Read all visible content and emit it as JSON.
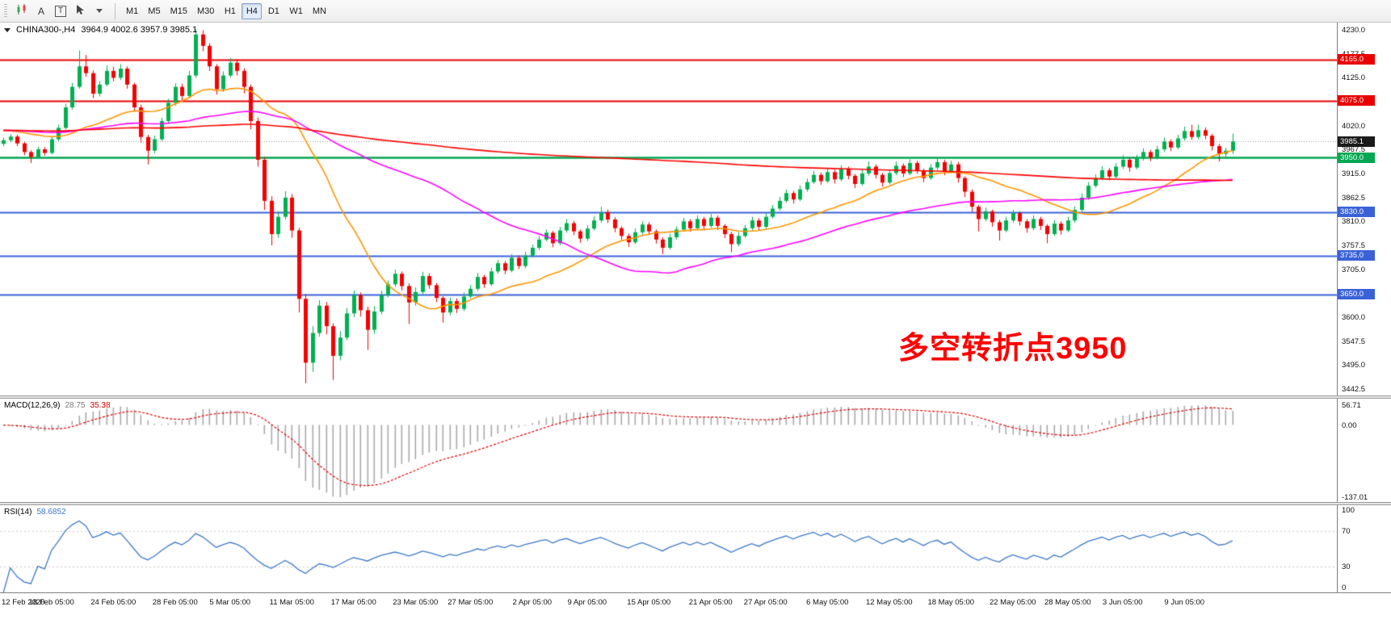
{
  "toolbar": {
    "tools": {
      "a_label": "A",
      "t_label": "T"
    },
    "timeframes": [
      "M1",
      "M5",
      "M15",
      "M30",
      "H1",
      "H4",
      "D1",
      "W1",
      "MN"
    ],
    "active_timeframe": "H4"
  },
  "chart": {
    "title_symbol": "CHINA300-,H4",
    "title_ohlc": "3964.9 4002.6 3957.9 3985.1",
    "annotation": "多空转折点3950",
    "annotation_color": "#FF0000"
  },
  "chart_data": {
    "type": "candlestick",
    "symbol": "CHINA300-",
    "timeframe": "H4",
    "ohlc_current": {
      "open": 3964.9,
      "high": 4002.6,
      "low": 3957.9,
      "close": 3985.1
    },
    "ylim": [
      3428,
      4246
    ],
    "price_ticks": [
      4230.0,
      4177.5,
      4125.0,
      4072.5,
      4020.0,
      3967.5,
      3915.0,
      3862.5,
      3810.0,
      3757.5,
      3705.0,
      3652.5,
      3600.0,
      3547.5,
      3495.0,
      3442.5
    ],
    "hlines": [
      {
        "price": 4165.0,
        "label": "4165.0",
        "color": "#E80000",
        "width": 2
      },
      {
        "price": 4075.0,
        "label": "4075.0",
        "color": "#E80000",
        "width": 2
      },
      {
        "price": 3950.0,
        "label": "3950.0",
        "color": "#00A651",
        "width": 2.4
      },
      {
        "price": 3830.0,
        "label": "3830.0",
        "color": "#3A62D8",
        "width": 2
      },
      {
        "price": 3735.0,
        "label": "3735.0",
        "color": "#3A62D8",
        "width": 2
      },
      {
        "price": 3650.0,
        "label": "3650.0",
        "color": "#3A62D8",
        "width": 2
      }
    ],
    "current_price": {
      "value": 3985.1,
      "label": "3985.1",
      "badge_color": "#1A1A1A",
      "line_color": "#999999"
    },
    "moving_averages": [
      {
        "name": "ma-fast",
        "color": "#FF9500",
        "period": 20
      },
      {
        "name": "ma-mid",
        "color": "#FF00FF",
        "period": 55
      },
      {
        "name": "ma-slow",
        "color": "#FF0000",
        "period": 240
      }
    ],
    "colors": {
      "bull": "#00B050",
      "bear": "#F40000",
      "background": "#FFFFFF"
    },
    "candles": [
      [
        3980,
        3994,
        3975,
        3988
      ],
      [
        3988,
        4001,
        3984,
        3996
      ],
      [
        3996,
        4000,
        3975,
        3981
      ],
      [
        3981,
        3984,
        3955,
        3962
      ],
      [
        3962,
        3966,
        3938,
        3951
      ],
      [
        3951,
        3974,
        3947,
        3968
      ],
      [
        3968,
        3973,
        3954,
        3960
      ],
      [
        3960,
        3996,
        3957,
        3990
      ],
      [
        3990,
        4022,
        3986,
        4015
      ],
      [
        4015,
        4068,
        4012,
        4060
      ],
      [
        4060,
        4114,
        4055,
        4105
      ],
      [
        4105,
        4185,
        4101,
        4150
      ],
      [
        4150,
        4175,
        4127,
        4135
      ],
      [
        4135,
        4141,
        4080,
        4090
      ],
      [
        4090,
        4118,
        4084,
        4110
      ],
      [
        4110,
        4152,
        4106,
        4140
      ],
      [
        4140,
        4149,
        4117,
        4125
      ],
      [
        4125,
        4155,
        4120,
        4145
      ],
      [
        4145,
        4150,
        4101,
        4110
      ],
      [
        4110,
        4114,
        4050,
        4060
      ],
      [
        4060,
        4066,
        3983,
        3995
      ],
      [
        3995,
        4000,
        3935,
        3965
      ],
      [
        3965,
        3998,
        3959,
        3990
      ],
      [
        3990,
        4037,
        3986,
        4030
      ],
      [
        4030,
        4079,
        4025,
        4070
      ],
      [
        4070,
        4113,
        4064,
        4105
      ],
      [
        4105,
        4112,
        4076,
        4085
      ],
      [
        4085,
        4140,
        4081,
        4130
      ],
      [
        4130,
        4231,
        4125,
        4220
      ],
      [
        4220,
        4229,
        4183,
        4195
      ],
      [
        4195,
        4201,
        4140,
        4150
      ],
      [
        4150,
        4155,
        4088,
        4100
      ],
      [
        4100,
        4139,
        4094,
        4130
      ],
      [
        4130,
        4168,
        4125,
        4158
      ],
      [
        4158,
        4166,
        4130,
        4140
      ],
      [
        4140,
        4146,
        4091,
        4105
      ],
      [
        4105,
        4110,
        4012,
        4030
      ],
      [
        4030,
        4038,
        3930,
        3945
      ],
      [
        3945,
        3951,
        3835,
        3855
      ],
      [
        3855,
        3865,
        3757,
        3782
      ],
      [
        3782,
        3832,
        3774,
        3820
      ],
      [
        3820,
        3876,
        3814,
        3862
      ],
      [
        3862,
        3870,
        3774,
        3790
      ],
      [
        3790,
        3796,
        3610,
        3640
      ],
      [
        3640,
        3650,
        3455,
        3500
      ],
      [
        3500,
        3580,
        3480,
        3565
      ],
      [
        3565,
        3637,
        3557,
        3625
      ],
      [
        3625,
        3633,
        3562,
        3580
      ],
      [
        3580,
        3586,
        3462,
        3515
      ],
      [
        3515,
        3569,
        3505,
        3555
      ],
      [
        3555,
        3620,
        3549,
        3608
      ],
      [
        3608,
        3658,
        3600,
        3648
      ],
      [
        3648,
        3654,
        3601,
        3615
      ],
      [
        3615,
        3623,
        3528,
        3572
      ],
      [
        3572,
        3624,
        3563,
        3612
      ],
      [
        3612,
        3658,
        3606,
        3648
      ],
      [
        3648,
        3680,
        3643,
        3672
      ],
      [
        3672,
        3704,
        3666,
        3695
      ],
      [
        3695,
        3700,
        3658,
        3668
      ],
      [
        3668,
        3674,
        3585,
        3632
      ],
      [
        3632,
        3665,
        3625,
        3655
      ],
      [
        3655,
        3699,
        3650,
        3690
      ],
      [
        3690,
        3696,
        3662,
        3670
      ],
      [
        3670,
        3675,
        3633,
        3642
      ],
      [
        3642,
        3646,
        3588,
        3610
      ],
      [
        3610,
        3643,
        3604,
        3635
      ],
      [
        3635,
        3641,
        3609,
        3618
      ],
      [
        3618,
        3654,
        3613,
        3645
      ],
      [
        3645,
        3670,
        3641,
        3662
      ],
      [
        3662,
        3697,
        3657,
        3688
      ],
      [
        3688,
        3693,
        3664,
        3672
      ],
      [
        3672,
        3708,
        3668,
        3700
      ],
      [
        3700,
        3725,
        3695,
        3718
      ],
      [
        3718,
        3723,
        3694,
        3702
      ],
      [
        3702,
        3738,
        3698,
        3730
      ],
      [
        3730,
        3735,
        3705,
        3712
      ],
      [
        3712,
        3743,
        3707,
        3735
      ],
      [
        3735,
        3759,
        3731,
        3752
      ],
      [
        3752,
        3778,
        3747,
        3770
      ],
      [
        3770,
        3792,
        3766,
        3785
      ],
      [
        3785,
        3789,
        3753,
        3762
      ],
      [
        3762,
        3798,
        3758,
        3790
      ],
      [
        3790,
        3815,
        3785,
        3806
      ],
      [
        3806,
        3811,
        3780,
        3788
      ],
      [
        3788,
        3792,
        3763,
        3772
      ],
      [
        3772,
        3802,
        3767,
        3794
      ],
      [
        3794,
        3821,
        3790,
        3812
      ],
      [
        3812,
        3842,
        3807,
        3830
      ],
      [
        3830,
        3836,
        3806,
        3814
      ],
      [
        3814,
        3819,
        3786,
        3795
      ],
      [
        3795,
        3799,
        3770,
        3778
      ],
      [
        3778,
        3783,
        3754,
        3764
      ],
      [
        3764,
        3794,
        3760,
        3786
      ],
      [
        3786,
        3810,
        3781,
        3803
      ],
      [
        3803,
        3808,
        3780,
        3788
      ],
      [
        3788,
        3792,
        3761,
        3770
      ],
      [
        3770,
        3775,
        3738,
        3752
      ],
      [
        3752,
        3783,
        3748,
        3775
      ],
      [
        3775,
        3799,
        3770,
        3792
      ],
      [
        3792,
        3818,
        3788,
        3810
      ],
      [
        3810,
        3815,
        3787,
        3795
      ],
      [
        3795,
        3823,
        3791,
        3815
      ],
      [
        3815,
        3820,
        3792,
        3800
      ],
      [
        3800,
        3826,
        3796,
        3818
      ],
      [
        3818,
        3823,
        3791,
        3800
      ],
      [
        3800,
        3804,
        3773,
        3782
      ],
      [
        3782,
        3787,
        3742,
        3760
      ],
      [
        3760,
        3786,
        3755,
        3778
      ],
      [
        3778,
        3802,
        3774,
        3795
      ],
      [
        3795,
        3820,
        3790,
        3812
      ],
      [
        3812,
        3817,
        3790,
        3798
      ],
      [
        3798,
        3828,
        3794,
        3820
      ],
      [
        3820,
        3846,
        3816,
        3838
      ],
      [
        3838,
        3864,
        3833,
        3855
      ],
      [
        3855,
        3880,
        3851,
        3872
      ],
      [
        3872,
        3877,
        3849,
        3858
      ],
      [
        3858,
        3889,
        3854,
        3880
      ],
      [
        3880,
        3904,
        3875,
        3896
      ],
      [
        3896,
        3921,
        3892,
        3912
      ],
      [
        3912,
        3917,
        3890,
        3898
      ],
      [
        3898,
        3926,
        3894,
        3918
      ],
      [
        3918,
        3923,
        3893,
        3902
      ],
      [
        3902,
        3933,
        3898,
        3925
      ],
      [
        3925,
        3930,
        3902,
        3910
      ],
      [
        3910,
        3914,
        3883,
        3892
      ],
      [
        3892,
        3923,
        3888,
        3915
      ],
      [
        3915,
        3942,
        3910,
        3930
      ],
      [
        3930,
        3935,
        3904,
        3912
      ],
      [
        3912,
        3916,
        3886,
        3895
      ],
      [
        3895,
        3924,
        3891,
        3916
      ],
      [
        3916,
        3941,
        3911,
        3932
      ],
      [
        3932,
        3937,
        3907,
        3915
      ],
      [
        3915,
        3946,
        3911,
        3938
      ],
      [
        3938,
        3943,
        3914,
        3922
      ],
      [
        3922,
        3926,
        3896,
        3905
      ],
      [
        3905,
        3936,
        3901,
        3928
      ],
      [
        3928,
        3949,
        3923,
        3940
      ],
      [
        3940,
        3945,
        3911,
        3920
      ],
      [
        3920,
        3943,
        3916,
        3935
      ],
      [
        3935,
        3940,
        3895,
        3905
      ],
      [
        3905,
        3909,
        3863,
        3875
      ],
      [
        3875,
        3880,
        3830,
        3842
      ],
      [
        3842,
        3846,
        3788,
        3815
      ],
      [
        3815,
        3840,
        3810,
        3832
      ],
      [
        3832,
        3836,
        3798,
        3808
      ],
      [
        3808,
        3813,
        3768,
        3790
      ],
      [
        3790,
        3820,
        3786,
        3812
      ],
      [
        3812,
        3835,
        3807,
        3828
      ],
      [
        3828,
        3832,
        3801,
        3810
      ],
      [
        3810,
        3815,
        3785,
        3795
      ],
      [
        3795,
        3823,
        3791,
        3815
      ],
      [
        3815,
        3820,
        3791,
        3800
      ],
      [
        3800,
        3804,
        3762,
        3782
      ],
      [
        3782,
        3813,
        3778,
        3805
      ],
      [
        3805,
        3810,
        3781,
        3790
      ],
      [
        3790,
        3820,
        3786,
        3812
      ],
      [
        3812,
        3843,
        3807,
        3835
      ],
      [
        3835,
        3871,
        3831,
        3862
      ],
      [
        3862,
        3896,
        3857,
        3888
      ],
      [
        3888,
        3913,
        3884,
        3905
      ],
      [
        3905,
        3931,
        3900,
        3922
      ],
      [
        3922,
        3927,
        3900,
        3908
      ],
      [
        3908,
        3938,
        3904,
        3930
      ],
      [
        3930,
        3955,
        3925,
        3945
      ],
      [
        3945,
        3950,
        3919,
        3928
      ],
      [
        3928,
        3956,
        3924,
        3948
      ],
      [
        3948,
        3970,
        3943,
        3962
      ],
      [
        3962,
        3967,
        3942,
        3950
      ],
      [
        3950,
        3976,
        3946,
        3968
      ],
      [
        3968,
        3994,
        3963,
        3985
      ],
      [
        3985,
        3990,
        3964,
        3972
      ],
      [
        3972,
        4000,
        3968,
        3992
      ],
      [
        3992,
        4018,
        3987,
        4008
      ],
      [
        4008,
        4022,
        3989,
        3995
      ],
      [
        3995,
        4022,
        3990,
        4010
      ],
      [
        4010,
        4016,
        3990,
        3998
      ],
      [
        3998,
        4002,
        3965,
        3975
      ],
      [
        3975,
        3980,
        3941,
        3958
      ],
      [
        3958,
        3971,
        3950,
        3964.9
      ],
      [
        3964.9,
        4002.6,
        3957.9,
        3985.1
      ]
    ],
    "time_labels": [
      {
        "i": 0,
        "t": "12 Feb 2020"
      },
      {
        "i": 7,
        "t": "18 Feb 05:00"
      },
      {
        "i": 16,
        "t": "24 Feb 05:00"
      },
      {
        "i": 25,
        "t": "28 Feb 05:00"
      },
      {
        "i": 33,
        "t": "5 Mar 05:00"
      },
      {
        "i": 42,
        "t": "11 Mar 05:00"
      },
      {
        "i": 51,
        "t": "17 Mar 05:00"
      },
      {
        "i": 60,
        "t": "23 Mar 05:00"
      },
      {
        "i": 68,
        "t": "27 Mar 05:00"
      },
      {
        "i": 77,
        "t": "2 Apr 05:00"
      },
      {
        "i": 85,
        "t": "9 Apr 05:00"
      },
      {
        "i": 94,
        "t": "15 Apr 05:00"
      },
      {
        "i": 103,
        "t": "21 Apr 05:00"
      },
      {
        "i": 111,
        "t": "27 Apr 05:00"
      },
      {
        "i": 120,
        "t": "6 May 05:00"
      },
      {
        "i": 129,
        "t": "12 May 05:00"
      },
      {
        "i": 138,
        "t": "18 May 05:00"
      },
      {
        "i": 147,
        "t": "22 May 05:00"
      },
      {
        "i": 155,
        "t": "28 May 05:00"
      },
      {
        "i": 163,
        "t": "3 Jun 05:00"
      },
      {
        "i": 172,
        "t": "9 Jun 05:00"
      }
    ],
    "indicators": {
      "macd": {
        "label": "MACD(12,26,9)",
        "fast": 12,
        "slow": 26,
        "signal": 9,
        "values": {
          "main": "28.75",
          "signal": "35.38"
        },
        "axis_labels": [
          "56.71",
          "0.00",
          "-137.01"
        ],
        "histogram_color": "#A8A8A8",
        "signal_color": "#E00000"
      },
      "rsi": {
        "label": "RSI(14)",
        "period": 14,
        "value": "58.6852",
        "axis_labels": [
          "100",
          "70",
          "30",
          "0"
        ],
        "levels": [
          70,
          30
        ],
        "line_color": "#3E78C8"
      }
    }
  }
}
